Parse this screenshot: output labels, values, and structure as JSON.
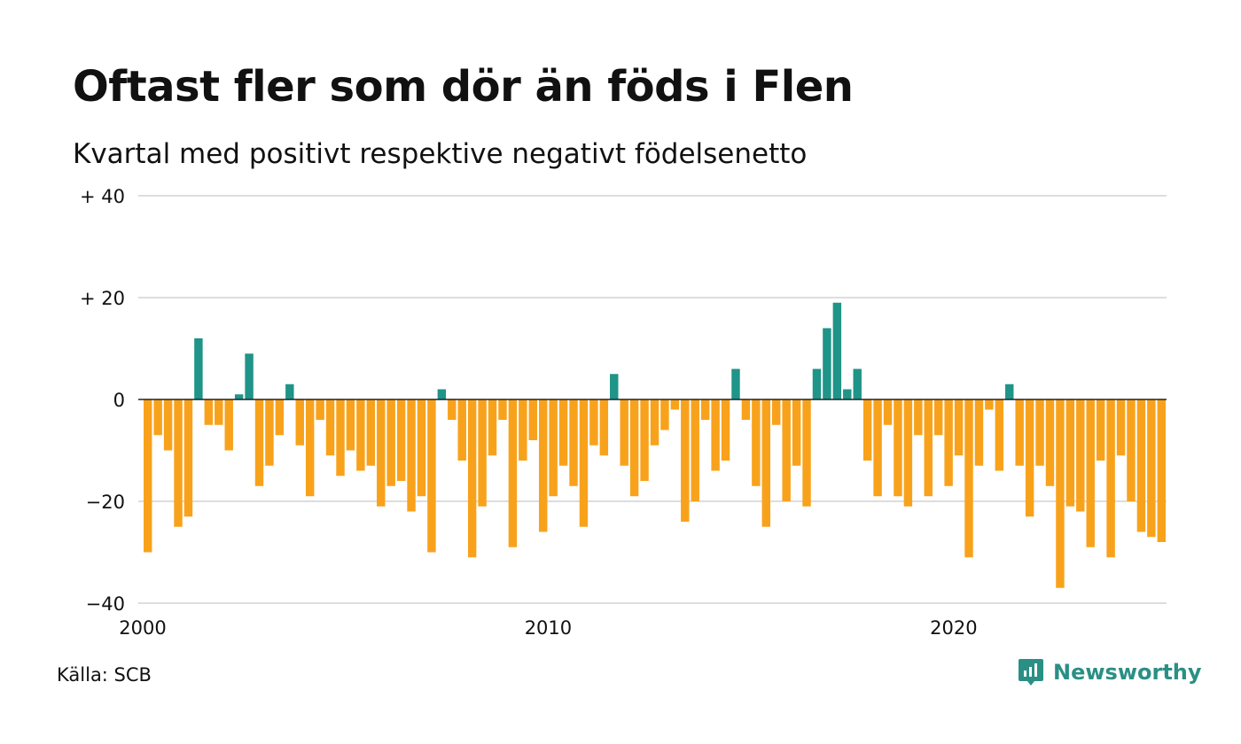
{
  "title": "Oftast fler som dör än föds i Flen",
  "subtitle": "Kvartal med positivt respektive negativt födelsenetto",
  "source": "Källa: SCB",
  "brand": {
    "name": "Newsworthy",
    "icon": "newsworthy-logo-icon",
    "color": "#2a8f85"
  },
  "chart_data": {
    "type": "bar",
    "title": "Oftast fler som dör än föds i Flen",
    "subtitle": "Kvartal med positivt respektive negativt födelsenetto",
    "ylim": [
      -40,
      40
    ],
    "y_ticks": [
      {
        "value": 40,
        "label": "+ 40"
      },
      {
        "value": 20,
        "label": "+ 20"
      },
      {
        "value": 0,
        "label": "0"
      },
      {
        "value": -20,
        "label": "−20"
      },
      {
        "value": -40,
        "label": "−40"
      }
    ],
    "x_ticks": [
      {
        "value": 2000,
        "label": "2000"
      },
      {
        "value": 2010,
        "label": "2010"
      },
      {
        "value": 2020,
        "label": "2020"
      }
    ],
    "grid": true,
    "colors": {
      "positive": "#1f9488",
      "negative": "#f8a21c",
      "grid": "#dddddd",
      "zero": "#222222"
    },
    "start_year": 2000,
    "periods_per_year": 4,
    "values": [
      -30,
      -7,
      -10,
      -25,
      -23,
      12,
      -5,
      -5,
      -10,
      1,
      9,
      -17,
      -13,
      -7,
      3,
      -9,
      -19,
      -4,
      -11,
      -15,
      -10,
      -14,
      -13,
      -21,
      -17,
      -16,
      -22,
      -19,
      -30,
      2,
      -4,
      -12,
      -31,
      -21,
      -11,
      -4,
      -29,
      -12,
      -8,
      -26,
      -19,
      -13,
      -17,
      -25,
      -9,
      -11,
      5,
      -13,
      -19,
      -16,
      -9,
      -6,
      -2,
      -24,
      -20,
      -4,
      -14,
      -12,
      6,
      -4,
      -17,
      -25,
      -5,
      -20,
      -13,
      -21,
      6,
      14,
      19,
      2,
      6,
      -12,
      -19,
      -5,
      -19,
      -21,
      -7,
      -19,
      -7,
      -17,
      -11,
      -31,
      -13,
      -2,
      -14,
      3,
      -13,
      -23,
      -13,
      -17,
      -37,
      -21,
      -22,
      -29,
      -12,
      -31,
      -11,
      -20,
      -26,
      -27,
      -28
    ]
  }
}
